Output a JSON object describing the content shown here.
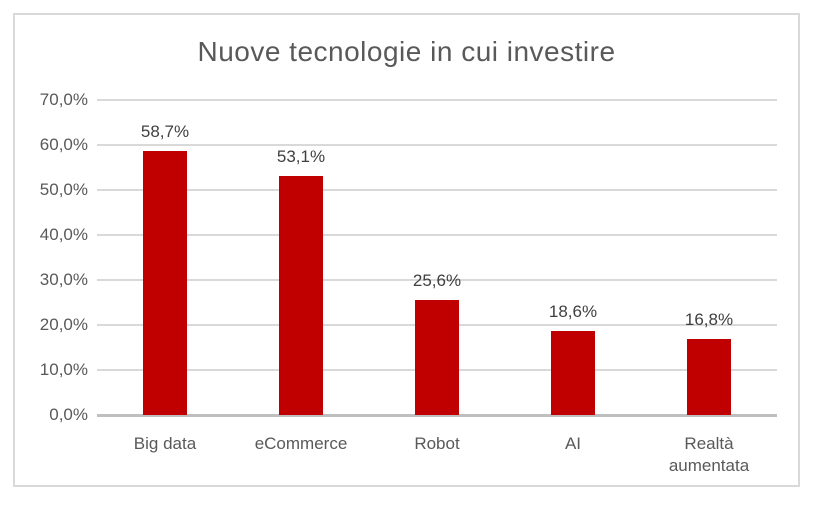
{
  "chart_data": {
    "type": "bar",
    "title": "Nuove tecnologie in cui investire",
    "categories": [
      "Big data",
      "eCommerce",
      "Robot",
      "AI",
      "Realtà aumentata"
    ],
    "values": [
      58.7,
      53.1,
      25.6,
      18.6,
      16.8
    ],
    "value_labels": [
      "58,7%",
      "53,1%",
      "25,6%",
      "18,6%",
      "16,8%"
    ],
    "y_tick_values": [
      70,
      60,
      50,
      40,
      30,
      20,
      10,
      0
    ],
    "y_tick_labels": [
      "70,0%",
      "60,0%",
      "50,0%",
      "40,0%",
      "30,0%",
      "20,0%",
      "10,0%",
      "0,0%"
    ],
    "ylim": [
      0,
      70
    ],
    "xlabel": "",
    "ylabel": "",
    "grid": true,
    "legend": false,
    "colors": {
      "bar": "#c00000",
      "title_text": "#595959",
      "axis_text": "#595959",
      "value_label_text": "#404040",
      "gridline": "#d9d9d9",
      "axis_line": "#bfbfbf",
      "frame_border": "#d9d9d9",
      "background": "#ffffff"
    }
  }
}
